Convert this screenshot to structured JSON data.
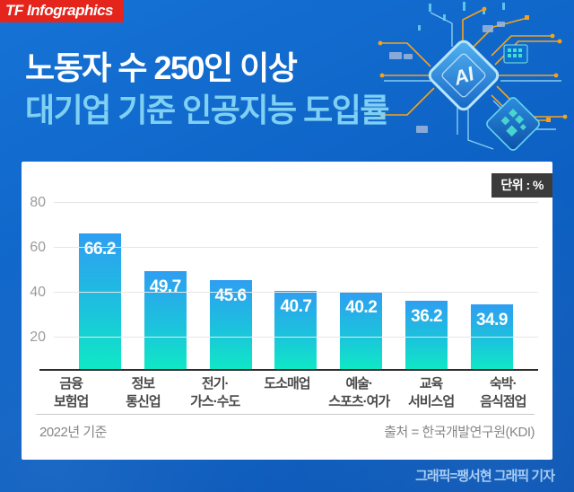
{
  "logo": {
    "text": "TF Infographics",
    "bg_color": "#e5251c"
  },
  "title": {
    "line1": "노동자 수 250인 이상",
    "line2": "대기업 기준 인공지능 도입률"
  },
  "unit_badge": "단위 : %",
  "chart_data": {
    "type": "bar",
    "title": "노동자 수 250인 이상 대기업 기준 인공지능 도입률",
    "unit": "%",
    "categories": [
      "금융\n보험업",
      "정보\n통신업",
      "전기·\n가스·수도",
      "도소매업",
      "예술·\n스포츠·여가",
      "교육\n서비스업",
      "숙박·\n음식점업"
    ],
    "values": [
      66.2,
      49.7,
      45.6,
      40.7,
      40.2,
      36.2,
      34.9
    ],
    "yticks": [
      20,
      40,
      60,
      80
    ],
    "ylim": [
      0,
      80
    ],
    "grid": true,
    "legend": "none",
    "bar_gradient_top": "#2f9ef1",
    "bar_gradient_bottom": "#0fe9c5",
    "note": "2022년 기준",
    "source": "출처 = 한국개발연구원(KDI)"
  },
  "footer": {
    "left": "2022년 기준",
    "right": "출처 = 한국개발연구원(KDI)"
  },
  "credit": "그래픽=팽서현 그래픽 기자",
  "illustration": {
    "chip_label": "AI"
  },
  "colors": {
    "background_blue": "#0e63c6",
    "title_line2": "#7fd0f2",
    "badge_bg": "#3b3b3b",
    "circuit_orange": "#f5a31c",
    "circuit_light_blue": "#86ccf2"
  }
}
